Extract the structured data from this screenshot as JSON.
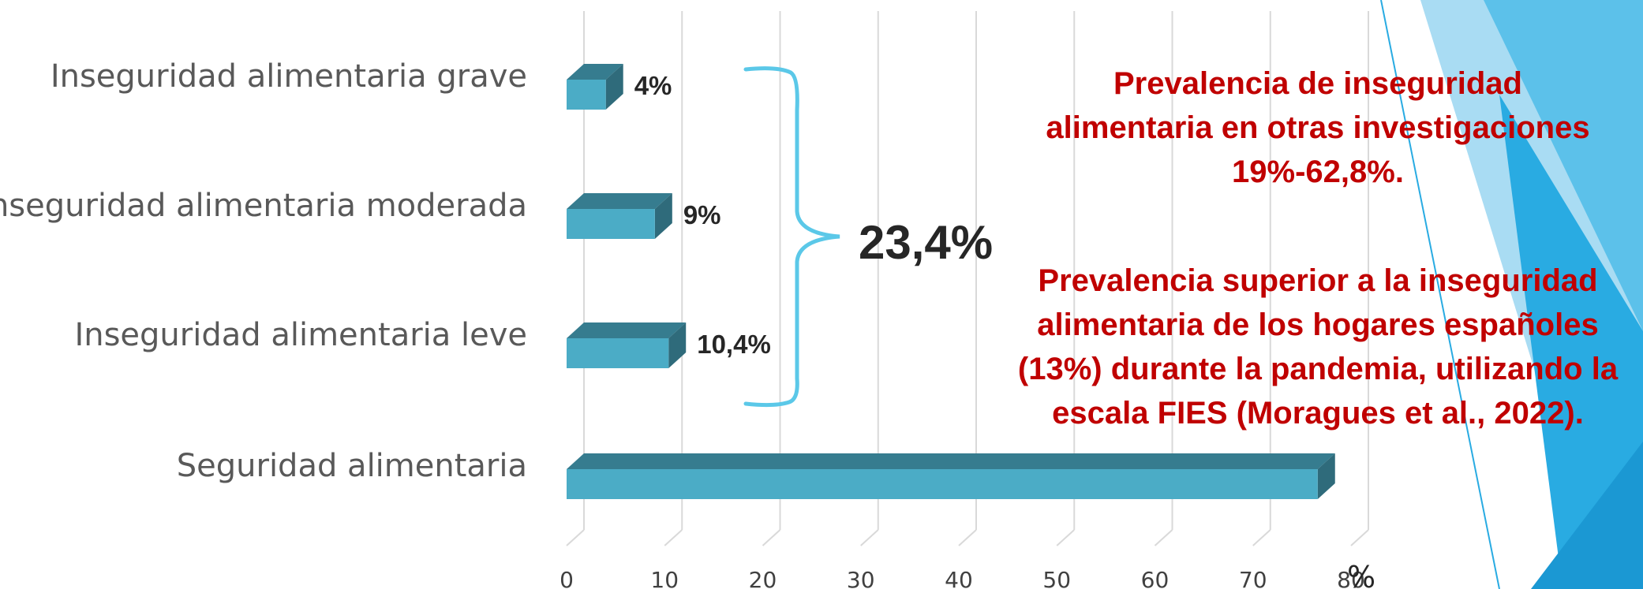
{
  "chart_data": {
    "type": "bar",
    "orientation": "horizontal",
    "categories": [
      "Inseguridad alimentaria grave",
      "Inseguridad alimentaria moderada",
      "Inseguridad alimentaria leve",
      "Seguridad alimentaria"
    ],
    "values": [
      4,
      9,
      10.4,
      76.6
    ],
    "data_labels": [
      "4%",
      "9%",
      "10,4%",
      ""
    ],
    "x_ticks": [
      "0",
      "10",
      "20",
      "30",
      "40",
      "50",
      "60",
      "70",
      "80"
    ],
    "xlim": [
      0,
      80
    ],
    "x_unit": "%",
    "grid": true,
    "bar_color": "#4bacc6",
    "bracket_label": "23,4%",
    "bracket_color": "#5bc8e8"
  },
  "notes": [
    "Prevalencia de inseguridad alimentaria en otras investigaciones 19%-62,8%.",
    "Prevalencia superior a la inseguridad alimentaria de los hogares españoles (13%) durante la pandemia, utilizando la escala FIES (Moragues et al., 2022)."
  ],
  "colors": {
    "note_text": "#c00000",
    "decoration": "#29abe2"
  }
}
